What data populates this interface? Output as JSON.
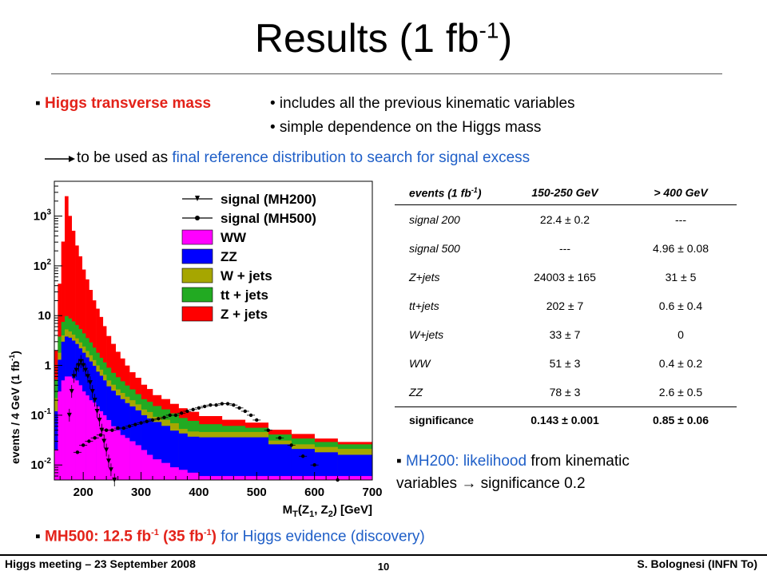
{
  "slide": {
    "title_main": "Results (1 fb",
    "title_sup": "-1",
    "title_end": ")"
  },
  "bullets": {
    "b1_label": "Higgs transverse mass",
    "b1_sub1": "• includes all the previous kinematic variables",
    "b1_sub2": "• simple dependence on the Higgs mass",
    "arrow_text_a": "to be used as ",
    "arrow_text_b": "final reference distribution to search for signal excess",
    "mh200_a": "MH200: likelihood",
    "mh200_b": " from kinematic",
    "mh200_c": "variables → significance 0.2",
    "mh500_a": "MH500: 12.5 fb",
    "mh500_sup1": "-1",
    "mh500_b": " (35 fb",
    "mh500_sup2": "-1",
    "mh500_c": ")",
    "mh500_d": " for Higgs evidence (discovery)"
  },
  "table": {
    "header": [
      "events (1 fb",
      "150-250 GeV",
      "> 400 GeV"
    ],
    "header_sup": "-1",
    "header_close": ")",
    "rows": [
      [
        "signal 200",
        "22.4 ± 0.2",
        "---"
      ],
      [
        "signal 500",
        "---",
        "4.96 ± 0.08"
      ],
      [
        "Z+jets",
        "24003 ± 165",
        "31 ± 5"
      ],
      [
        "tt+jets",
        "202 ± 7",
        "0.6 ± 0.4"
      ],
      [
        "W+jets",
        "33 ± 7",
        "0"
      ],
      [
        "WW",
        "51 ± 3",
        "0.4 ± 0.2"
      ],
      [
        "ZZ",
        "78 ± 3",
        "2.6 ± 0.5"
      ]
    ],
    "significance": [
      "significance",
      "0.143 ± 0.001",
      "0.85 ± 0.06"
    ]
  },
  "footer": {
    "left": "Higgs meeting – 23 September 2008",
    "page": "10",
    "right": "S. Bolognesi (INFN To)"
  },
  "chart_data": {
    "type": "area",
    "stacked": true,
    "log_y": true,
    "ylim": [
      0.005,
      5000
    ],
    "xlim": [
      150,
      700
    ],
    "xlabel": "M",
    "xlabel_sub": "T",
    "xlabel_rest": "(Z",
    "xlabel_sub1": "1",
    "xlabel_mid": ", Z",
    "xlabel_sub2": "2",
    "xlabel_end": ") [GeV]",
    "ylabel": "events / 4 GeV  (1 fb",
    "ylabel_sup": "-1",
    "ylabel_end": ")",
    "x_ticks": [
      200,
      300,
      400,
      500,
      600,
      700
    ],
    "y_ticks": [
      {
        "v": 0.01,
        "base": "10",
        "exp": "-2"
      },
      {
        "v": 0.1,
        "base": "10",
        "exp": "-1"
      },
      {
        "v": 1,
        "base": "1",
        "exp": ""
      },
      {
        "v": 10,
        "base": "10",
        "exp": ""
      },
      {
        "v": 100,
        "base": "10",
        "exp": "2"
      },
      {
        "v": 1000,
        "base": "10",
        "exp": "3"
      }
    ],
    "legend": [
      {
        "name": "signal (MH200)",
        "kind": "line-down"
      },
      {
        "name": "signal (MH500)",
        "kind": "line-dot"
      },
      {
        "name": "WW",
        "kind": "fill",
        "color": "#ff00ff"
      },
      {
        "name": "ZZ",
        "kind": "fill",
        "color": "#0000ff"
      },
      {
        "name": "W + jets",
        "kind": "fill",
        "color": "#a6a600"
      },
      {
        "name": "tt + jets",
        "kind": "fill",
        "color": "#22aa22"
      },
      {
        "name": "Z + jets",
        "kind": "fill",
        "color": "#ff0000"
      }
    ],
    "bin_edges": [
      150,
      156,
      162,
      168,
      174,
      180,
      186,
      192,
      198,
      204,
      210,
      216,
      222,
      228,
      234,
      240,
      248,
      256,
      264,
      272,
      280,
      290,
      300,
      310,
      320,
      335,
      350,
      365,
      380,
      400,
      440,
      480,
      520,
      560,
      600,
      640,
      700
    ],
    "stack": {
      "WW": [
        0.02,
        0.3,
        0.5,
        0.6,
        0.6,
        0.55,
        0.5,
        0.4,
        0.3,
        0.25,
        0.2,
        0.18,
        0.15,
        0.12,
        0.1,
        0.08,
        0.06,
        0.05,
        0.04,
        0.035,
        0.03,
        0.025,
        0.02,
        0.016,
        0.013,
        0.011,
        0.009,
        0.008,
        0.007,
        0.006,
        0.006,
        0.006,
        0.006,
        0.006,
        0.006,
        0.006
      ],
      "ZZ": [
        0.1,
        1.0,
        2.5,
        3.2,
        3.0,
        2.6,
        2.2,
        1.8,
        1.5,
        1.2,
        1.0,
        0.8,
        0.6,
        0.5,
        0.4,
        0.3,
        0.25,
        0.2,
        0.17,
        0.14,
        0.12,
        0.1,
        0.08,
        0.07,
        0.06,
        0.05,
        0.04,
        0.035,
        0.03,
        0.03,
        0.03,
        0.03,
        0.02,
        0.015,
        0.012,
        0.01
      ],
      "W + jets": [
        0.1,
        0.5,
        1.0,
        1.5,
        1.2,
        1.0,
        0.8,
        0.7,
        0.6,
        0.5,
        0.4,
        0.3,
        0.25,
        0.2,
        0.15,
        0.12,
        0.1,
        0.08,
        0.07,
        0.06,
        0.05,
        0.04,
        0.03,
        0.03,
        0.02,
        0.02,
        0.02,
        0.01,
        0.01,
        0.01,
        0.01,
        0.01,
        0.005,
        0.005,
        0.005,
        0.005
      ],
      "tt + jets": [
        0.3,
        2.0,
        3.5,
        4.5,
        4.0,
        3.5,
        3.0,
        2.5,
        2.0,
        1.6,
        1.3,
        1.0,
        0.8,
        0.6,
        0.5,
        0.4,
        0.3,
        0.25,
        0.2,
        0.16,
        0.13,
        0.1,
        0.08,
        0.07,
        0.06,
        0.05,
        0.04,
        0.035,
        0.03,
        0.02,
        0.015,
        0.01,
        0.01,
        0.008,
        0.006,
        0.005
      ],
      "Z + jets": [
        1.5,
        40,
        300,
        2500,
        1000,
        500,
        250,
        150,
        80,
        50,
        30,
        18,
        12,
        8,
        5,
        3,
        2,
        1.3,
        0.9,
        0.6,
        0.4,
        0.3,
        0.2,
        0.15,
        0.1,
        0.08,
        0.06,
        0.05,
        0.04,
        0.03,
        0.02,
        0.015,
        0.01,
        0.008,
        0.005,
        0.003
      ]
    },
    "signal_MH200": {
      "x": [
        176,
        180,
        184,
        188,
        192,
        196,
        200,
        204,
        208,
        212,
        216,
        220,
        224,
        228,
        232,
        236,
        240,
        244,
        248,
        254
      ],
      "y": [
        0.1,
        0.3,
        0.6,
        0.8,
        1.0,
        1.2,
        1.0,
        0.8,
        0.6,
        0.45,
        0.3,
        0.2,
        0.12,
        0.08,
        0.05,
        0.03,
        0.02,
        0.012,
        0.008,
        0.005
      ]
    },
    "signal_MH500": {
      "x": [
        190,
        200,
        210,
        220,
        230,
        240,
        250,
        260,
        270,
        280,
        290,
        300,
        310,
        320,
        330,
        340,
        350,
        360,
        370,
        380,
        390,
        400,
        410,
        420,
        430,
        440,
        450,
        460,
        470,
        480,
        490,
        500,
        520,
        540,
        560,
        580,
        600,
        640
      ],
      "y": [
        0.018,
        0.025,
        0.03,
        0.035,
        0.04,
        0.05,
        0.05,
        0.055,
        0.055,
        0.06,
        0.065,
        0.07,
        0.075,
        0.08,
        0.085,
        0.09,
        0.1,
        0.1,
        0.11,
        0.12,
        0.13,
        0.14,
        0.15,
        0.16,
        0.16,
        0.17,
        0.17,
        0.16,
        0.14,
        0.12,
        0.1,
        0.08,
        0.05,
        0.035,
        0.025,
        0.015,
        0.01,
        0.005
      ]
    }
  }
}
